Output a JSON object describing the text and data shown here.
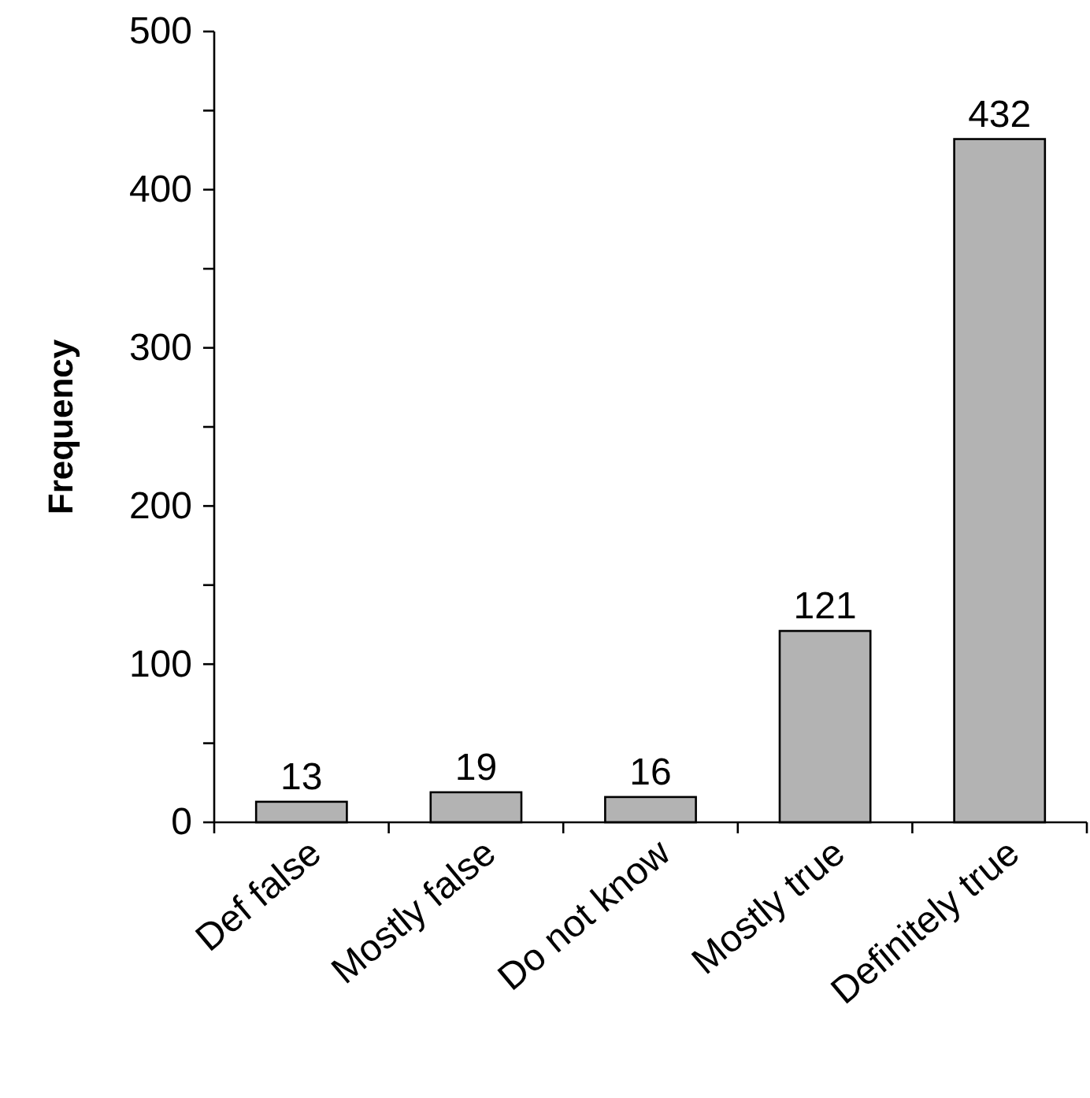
{
  "chart_data": {
    "type": "bar",
    "ylabel": "Frequency",
    "categories": [
      "Def false",
      "Mostly false",
      "Do not know",
      "Mostly true",
      "Definitely true"
    ],
    "values": [
      13,
      19,
      16,
      121,
      432
    ],
    "color": "#b3b3b3",
    "data_labels": true,
    "grid": false,
    "ylim": [
      0,
      500
    ],
    "yticks": [
      0,
      {
        "value": 50,
        "label": null
      },
      100,
      {
        "value": 150,
        "label": null
      },
      200,
      {
        "value": 250,
        "label": null
      },
      300,
      {
        "value": 350,
        "label": null
      },
      400,
      {
        "value": 450,
        "label": null
      },
      500
    ]
  }
}
